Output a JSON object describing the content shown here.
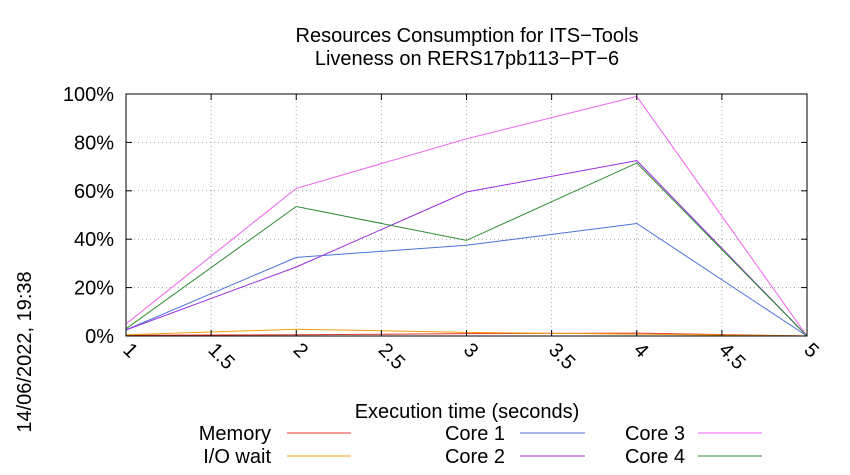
{
  "chart_data": {
    "type": "line",
    "title": "Resources Consumption for ITS−Tools",
    "subtitle": "Liveness on RERS17pb113−PT−6",
    "xlabel": "Execution time (seconds)",
    "ylabel": "",
    "side_label": "14/06/2022, 19:38",
    "xlim": [
      1,
      5
    ],
    "ylim": [
      0,
      100
    ],
    "x_ticks": [
      1,
      1.5,
      2,
      2.5,
      3,
      3.5,
      4,
      4.5,
      5
    ],
    "x_tick_labels": [
      "1",
      "1.5",
      "2",
      "2.5",
      "3",
      "3.5",
      "4",
      "4.5",
      "5"
    ],
    "y_ticks": [
      0,
      20,
      40,
      60,
      80,
      100
    ],
    "y_tick_labels": [
      "0%",
      "20%",
      "40%",
      "60%",
      "80%",
      "100%"
    ],
    "grid": true,
    "legend_position": "bottom",
    "x": [
      1,
      2,
      3,
      4,
      5
    ],
    "series": [
      {
        "name": "Memory",
        "color": "#e8372c",
        "values": [
          0.3,
          0.5,
          1.0,
          1.2,
          0
        ]
      },
      {
        "name": "I/O wait",
        "color": "#f0a010",
        "values": [
          0.5,
          2.8,
          1.5,
          0.8,
          0
        ]
      },
      {
        "name": "Core 1",
        "color": "#4a72d8",
        "values": [
          2.5,
          32.5,
          37.5,
          46.5,
          0
        ]
      },
      {
        "name": "Core 2",
        "color": "#9a2ee0",
        "values": [
          2.5,
          28.5,
          59.5,
          72.5,
          0
        ]
      },
      {
        "name": "Core 3",
        "color": "#f060f0",
        "values": [
          5.0,
          61.0,
          81.5,
          99.0,
          0
        ]
      },
      {
        "name": "Core 4",
        "color": "#2e8c2e",
        "values": [
          3.0,
          53.5,
          39.5,
          71.5,
          0
        ]
      }
    ]
  }
}
